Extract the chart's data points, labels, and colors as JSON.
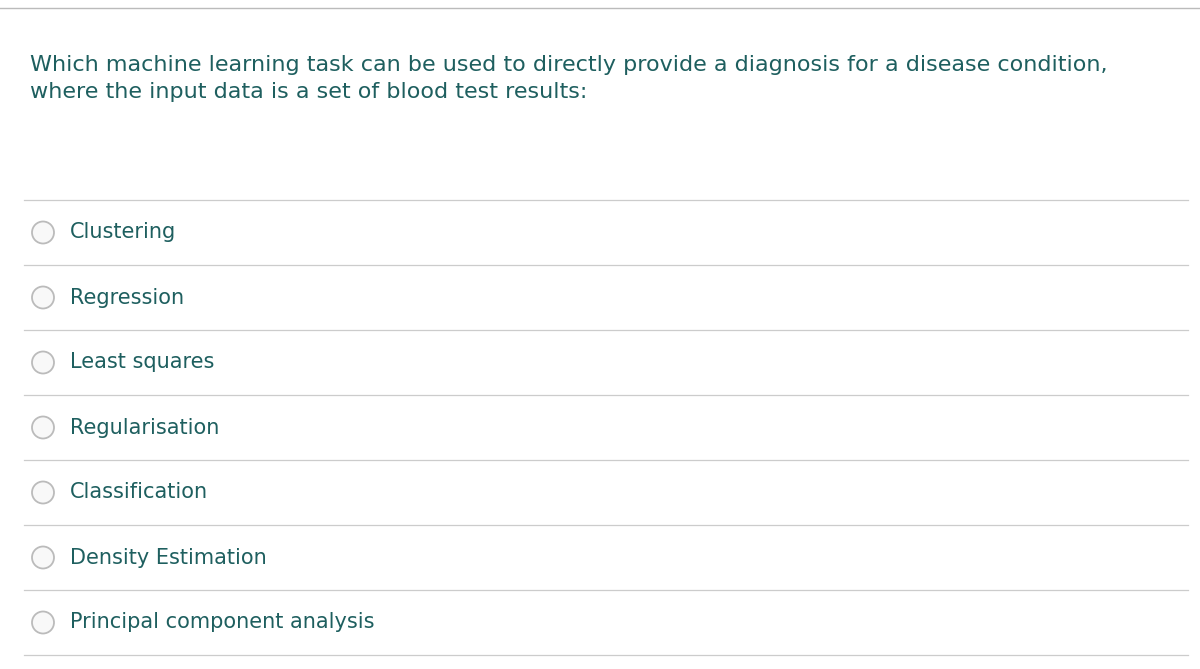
{
  "question_line1": "Which machine learning task can be used to directly provide a diagnosis for a disease condition,",
  "question_line2": "where the input data is a set of blood test results:",
  "options": [
    "Clustering",
    "Regression",
    "Least squares",
    "Regularisation",
    "Classification",
    "Density Estimation",
    "Principal component analysis"
  ],
  "background_color": "#ffffff",
  "question_color": "#1e5f5f",
  "option_text_color": "#1e5f5f",
  "divider_color": "#cccccc",
  "circle_edge_color": "#bbbbbb",
  "circle_face_color": "#f8f8f8",
  "top_border_color": "#bbbbbb",
  "question_fontsize": 16,
  "option_fontsize": 15,
  "figwidth": 12.0,
  "figheight": 6.69,
  "dpi": 100
}
